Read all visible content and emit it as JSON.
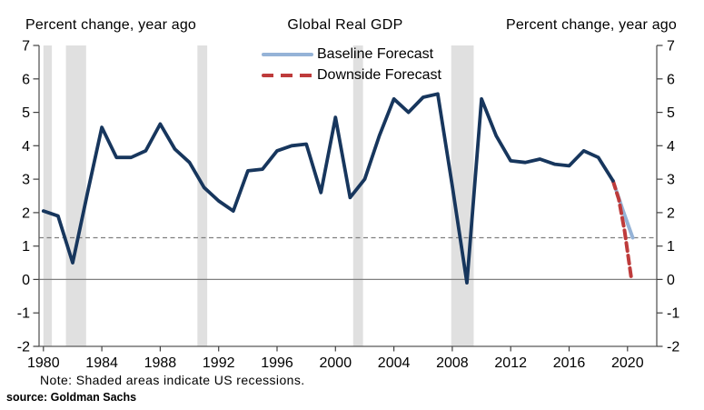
{
  "titles": {
    "left": "Percent change, year ago",
    "right": "Percent change, year ago"
  },
  "legend": {
    "title": "Global Real GDP",
    "items": [
      {
        "label": "Baseline Forecast",
        "color": "#95B3D7",
        "style": "solid"
      },
      {
        "label": "Downside Forecast",
        "color": "#BE3B3B",
        "style": "dashed"
      }
    ]
  },
  "footer": {
    "note": "Note: Shaded areas indicate US recessions.",
    "source": "source: Goldman Sachs"
  },
  "chart_data": {
    "type": "line",
    "title": "Global Real GDP",
    "xlabel": "",
    "ylabel": "Percent change, year ago",
    "xlim": [
      1979.7,
      2022
    ],
    "ylim": [
      -2,
      7
    ],
    "x_ticks": [
      1980,
      1984,
      1988,
      1992,
      1996,
      2000,
      2004,
      2008,
      2012,
      2016,
      2020
    ],
    "y_ticks": [
      7,
      6,
      5,
      4,
      3,
      2,
      1,
      0,
      -1,
      -2
    ],
    "grid": false,
    "legend_position": "top-center",
    "reference_line_y": 1.25,
    "zero_line_y": 0,
    "colors": {
      "history": "#17365D",
      "baseline": "#95B3D7",
      "downside": "#BE3B3B",
      "recession_shading": "#E0E0E0",
      "axis": "#595959",
      "tick": "#404040",
      "zero_line": "#808080",
      "reference_line": "#7F7F7F"
    },
    "series": [
      {
        "name": "Global Real GDP",
        "style": "solid",
        "color_key": "history",
        "x": [
          1980,
          1981,
          1982,
          1983,
          1984,
          1985,
          1986,
          1987,
          1988,
          1989,
          1990,
          1991,
          1992,
          1993,
          1994,
          1995,
          1996,
          1997,
          1998,
          1999,
          2000,
          2001,
          2002,
          2003,
          2004,
          2005,
          2006,
          2007,
          2008,
          2009,
          2010,
          2011,
          2012,
          2013,
          2014,
          2015,
          2016,
          2017,
          2018,
          2019
        ],
        "values": [
          2.05,
          1.9,
          0.5,
          2.55,
          4.55,
          3.65,
          3.65,
          3.85,
          4.65,
          3.9,
          3.5,
          2.75,
          2.35,
          2.05,
          3.25,
          3.3,
          3.85,
          4.0,
          4.05,
          2.6,
          4.85,
          2.45,
          3.0,
          4.3,
          5.4,
          5.0,
          5.45,
          5.55,
          2.8,
          -0.1,
          5.4,
          4.3,
          3.55,
          3.5,
          3.6,
          3.45,
          3.4,
          3.85,
          3.65,
          2.95
        ]
      },
      {
        "name": "Baseline Forecast",
        "style": "solid",
        "color_key": "baseline",
        "x": [
          2019,
          2019.7,
          2020.35
        ],
        "values": [
          2.95,
          2.05,
          1.25
        ]
      },
      {
        "name": "Downside Forecast",
        "style": "dashed",
        "color_key": "downside",
        "x": [
          2019,
          2019.4,
          2019.8,
          2020.25
        ],
        "values": [
          2.95,
          2.4,
          1.45,
          0.05
        ]
      }
    ],
    "recessions": [
      [
        1980.0,
        1980.58
      ],
      [
        1981.54,
        1982.92
      ],
      [
        1990.54,
        1991.21
      ],
      [
        2001.21,
        2001.88
      ],
      [
        2007.92,
        2009.46
      ]
    ]
  }
}
